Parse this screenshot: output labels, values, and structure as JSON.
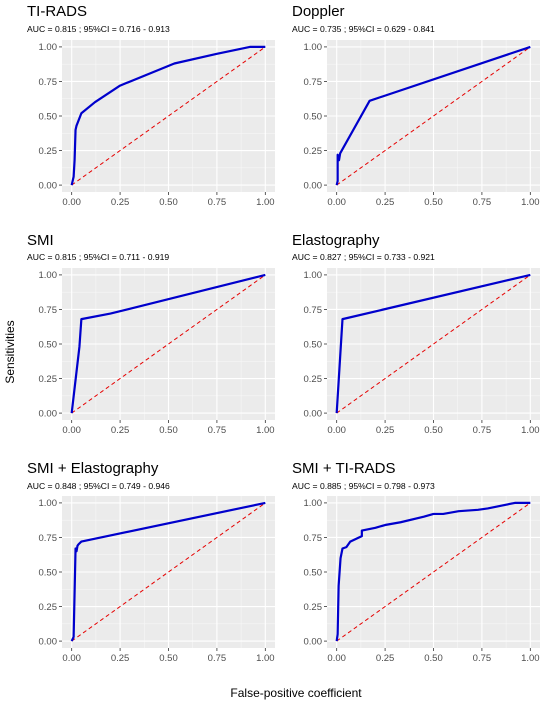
{
  "figure": {
    "xlabel": "False-positive coefficient",
    "ylabel": "Sensitivities"
  },
  "chart_data": [
    {
      "type": "line",
      "title": "TI-RADS",
      "subtitle": "AUC = 0.815 ; 95%CI = 0.716 - 0.913",
      "xlim": [
        0,
        1
      ],
      "ylim": [
        0,
        1
      ],
      "x_ticks": [
        "0.00",
        "0.25",
        "0.50",
        "0.75",
        "1.00"
      ],
      "y_ticks": [
        "0.00",
        "0.25",
        "0.50",
        "0.75",
        "1.00"
      ],
      "grid": true,
      "series": [
        {
          "role": "roc",
          "color": "#0000cc",
          "x": [
            0,
            0.01,
            0.015,
            0.02,
            0.025,
            0.05,
            0.12,
            0.25,
            0.53,
            0.75,
            0.92,
            1.0
          ],
          "y": [
            0,
            0.06,
            0.18,
            0.4,
            0.43,
            0.52,
            0.6,
            0.72,
            0.88,
            0.95,
            1.0,
            1.0
          ]
        },
        {
          "role": "reference",
          "color": "#e60000",
          "x": [
            0,
            1
          ],
          "y": [
            0,
            1
          ]
        }
      ]
    },
    {
      "type": "line",
      "title": "Doppler",
      "subtitle": "AUC = 0.735 ; 95%CI = 0.629 - 0.841",
      "xlim": [
        0,
        1
      ],
      "ylim": [
        0,
        1
      ],
      "x_ticks": [
        "0.00",
        "0.25",
        "0.50",
        "0.75",
        "1.00"
      ],
      "y_ticks": [
        "0.00",
        "0.25",
        "0.50",
        "0.75",
        "1.00"
      ],
      "grid": true,
      "series": [
        {
          "role": "roc",
          "color": "#0000cc",
          "x": [
            0,
            0.005,
            0.005,
            0.012,
            0.018,
            0.17,
            1.0
          ],
          "y": [
            0,
            0.03,
            0.22,
            0.18,
            0.23,
            0.61,
            1.0
          ]
        },
        {
          "role": "reference",
          "color": "#e60000",
          "x": [
            0,
            1
          ],
          "y": [
            0,
            1
          ]
        }
      ]
    },
    {
      "type": "line",
      "title": "SMI",
      "subtitle": "AUC = 0.815 ; 95%CI = 0.711 - 0.919",
      "xlim": [
        0,
        1
      ],
      "ylim": [
        0,
        1
      ],
      "x_ticks": [
        "0.00",
        "0.25",
        "0.50",
        "0.75",
        "1.00"
      ],
      "y_ticks": [
        "0.00",
        "0.25",
        "0.50",
        "0.75",
        "1.00"
      ],
      "grid": true,
      "series": [
        {
          "role": "roc",
          "color": "#0000cc",
          "x": [
            0,
            0.04,
            0.05,
            0.2,
            1.0
          ],
          "y": [
            0,
            0.48,
            0.68,
            0.72,
            1.0
          ]
        },
        {
          "role": "reference",
          "color": "#e60000",
          "x": [
            0,
            1
          ],
          "y": [
            0,
            1
          ]
        }
      ]
    },
    {
      "type": "line",
      "title": "Elastography",
      "subtitle": "AUC = 0.827 ; 95%CI = 0.733 - 0.921",
      "xlim": [
        0,
        1
      ],
      "ylim": [
        0,
        1
      ],
      "x_ticks": [
        "0.00",
        "0.25",
        "0.50",
        "0.75",
        "1.00"
      ],
      "y_ticks": [
        "0.00",
        "0.25",
        "0.50",
        "0.75",
        "1.00"
      ],
      "grid": true,
      "series": [
        {
          "role": "roc",
          "color": "#0000cc",
          "x": [
            0,
            0.03,
            1.0
          ],
          "y": [
            0,
            0.68,
            1.0
          ]
        },
        {
          "role": "reference",
          "color": "#e60000",
          "x": [
            0,
            1
          ],
          "y": [
            0,
            1
          ]
        }
      ]
    },
    {
      "type": "line",
      "title": "SMI + Elastography",
      "subtitle": "AUC = 0.848 ; 95%CI = 0.749 - 0.946",
      "xlim": [
        0,
        1
      ],
      "ylim": [
        0,
        1
      ],
      "x_ticks": [
        "0.00",
        "0.25",
        "0.50",
        "0.75",
        "1.00"
      ],
      "y_ticks": [
        "0.00",
        "0.25",
        "0.50",
        "0.75",
        "1.00"
      ],
      "grid": true,
      "series": [
        {
          "role": "roc",
          "color": "#0000cc",
          "x": [
            0,
            0.01,
            0.02,
            0.025,
            0.03,
            0.035,
            0.05,
            1.0
          ],
          "y": [
            0,
            0.03,
            0.67,
            0.65,
            0.69,
            0.7,
            0.72,
            1.0
          ]
        },
        {
          "role": "reference",
          "color": "#e60000",
          "x": [
            0,
            1
          ],
          "y": [
            0,
            1
          ]
        }
      ]
    },
    {
      "type": "line",
      "title": "SMI + TI-RADS",
      "subtitle": "AUC = 0.885 ; 95%CI = 0.798 - 0.973",
      "xlim": [
        0,
        1
      ],
      "ylim": [
        0,
        1
      ],
      "x_ticks": [
        "0.00",
        "0.25",
        "0.50",
        "0.75",
        "1.00"
      ],
      "y_ticks": [
        "0.00",
        "0.25",
        "0.50",
        "0.75",
        "1.00"
      ],
      "grid": true,
      "series": [
        {
          "role": "roc",
          "color": "#0000cc",
          "x": [
            0,
            0.005,
            0.01,
            0.02,
            0.03,
            0.05,
            0.07,
            0.13,
            0.13,
            0.2,
            0.25,
            0.33,
            0.45,
            0.5,
            0.55,
            0.63,
            0.73,
            0.78,
            0.85,
            0.92,
            1.0
          ],
          "y": [
            0,
            0.05,
            0.4,
            0.6,
            0.67,
            0.68,
            0.72,
            0.76,
            0.8,
            0.82,
            0.84,
            0.86,
            0.9,
            0.92,
            0.92,
            0.94,
            0.95,
            0.96,
            0.98,
            1.0,
            1.0
          ]
        },
        {
          "role": "reference",
          "color": "#e60000",
          "x": [
            0,
            1
          ],
          "y": [
            0,
            1
          ]
        }
      ]
    }
  ]
}
